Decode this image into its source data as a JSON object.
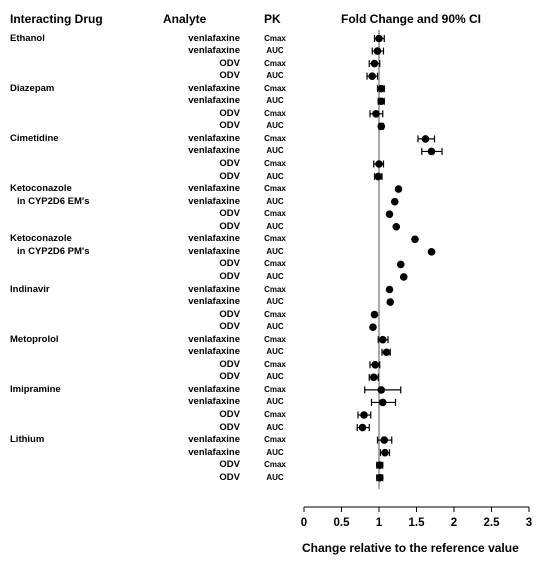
{
  "headers": {
    "drug": "Interacting Drug",
    "analyte": "Analyte",
    "pk": "PK",
    "ci": "Fold Change and 90% CI"
  },
  "chart_data": {
    "type": "scatter",
    "subtype": "forest-plot",
    "xlabel": "Change relative to the reference value",
    "xlim": [
      0,
      3
    ],
    "xticks": [
      "0",
      "0.5",
      "1",
      "1.5",
      "2",
      "2.5",
      "3"
    ],
    "reference_line": 1,
    "rows": [
      {
        "drug_lines": [
          "Ethanol"
        ],
        "analyte": "venlafaxine",
        "pk": "Cmax",
        "est": 1.0,
        "lo": 0.94,
        "hi": 1.07
      },
      {
        "drug_lines": [],
        "analyte": "venlafaxine",
        "pk": "AUC",
        "est": 0.98,
        "lo": 0.91,
        "hi": 1.06
      },
      {
        "drug_lines": [],
        "analyte": "ODV",
        "pk": "Cmax",
        "est": 0.94,
        "lo": 0.87,
        "hi": 1.01
      },
      {
        "drug_lines": [],
        "analyte": "ODV",
        "pk": "AUC",
        "est": 0.91,
        "lo": 0.84,
        "hi": 0.98
      },
      {
        "drug_lines": [
          "Diazepam"
        ],
        "analyte": "venlafaxine",
        "pk": "Cmax",
        "est": 1.03,
        "lo": 0.98,
        "hi": 1.07
      },
      {
        "drug_lines": [],
        "analyte": "venlafaxine",
        "pk": "AUC",
        "est": 1.03,
        "lo": 0.99,
        "hi": 1.07
      },
      {
        "drug_lines": [],
        "analyte": "ODV",
        "pk": "Cmax",
        "est": 0.96,
        "lo": 0.88,
        "hi": 1.05
      },
      {
        "drug_lines": [],
        "analyte": "ODV",
        "pk": "AUC",
        "est": 1.03,
        "lo": 1.0,
        "hi": 1.06
      },
      {
        "drug_lines": [
          "Cimetidine"
        ],
        "analyte": "venlafaxine",
        "pk": "Cmax",
        "est": 1.62,
        "lo": 1.52,
        "hi": 1.74
      },
      {
        "drug_lines": [],
        "analyte": "venlafaxine",
        "pk": "AUC",
        "est": 1.7,
        "lo": 1.57,
        "hi": 1.84
      },
      {
        "drug_lines": [],
        "analyte": "ODV",
        "pk": "Cmax",
        "est": 1.0,
        "lo": 0.93,
        "hi": 1.06
      },
      {
        "drug_lines": [],
        "analyte": "ODV",
        "pk": "AUC",
        "est": 0.99,
        "lo": 0.94,
        "hi": 1.04
      },
      {
        "drug_lines": [
          "Ketoconazole",
          "in CYP2D6 EM's"
        ],
        "analyte": "venlafaxine",
        "pk": "Cmax",
        "est": 1.26,
        "lo": 1.26,
        "hi": 1.26
      },
      {
        "drug_lines": [],
        "analyte": "venlafaxine",
        "pk": "AUC",
        "est": 1.21,
        "lo": 1.21,
        "hi": 1.21
      },
      {
        "drug_lines": [],
        "analyte": "ODV",
        "pk": "Cmax",
        "est": 1.14,
        "lo": 1.14,
        "hi": 1.14
      },
      {
        "drug_lines": [],
        "analyte": "ODV",
        "pk": "AUC",
        "est": 1.23,
        "lo": 1.23,
        "hi": 1.23
      },
      {
        "drug_lines": [
          "Ketoconazole",
          "in CYP2D6 PM's"
        ],
        "analyte": "venlafaxine",
        "pk": "Cmax",
        "est": 1.48,
        "lo": 1.48,
        "hi": 1.48
      },
      {
        "drug_lines": [],
        "analyte": "venlafaxine",
        "pk": "AUC",
        "est": 1.7,
        "lo": 1.7,
        "hi": 1.7
      },
      {
        "drug_lines": [],
        "analyte": "ODV",
        "pk": "Cmax",
        "est": 1.29,
        "lo": 1.29,
        "hi": 1.29
      },
      {
        "drug_lines": [],
        "analyte": "ODV",
        "pk": "AUC",
        "est": 1.33,
        "lo": 1.33,
        "hi": 1.33
      },
      {
        "drug_lines": [
          "Indinavir"
        ],
        "analyte": "venlafaxine",
        "pk": "Cmax",
        "est": 1.14,
        "lo": 1.14,
        "hi": 1.14
      },
      {
        "drug_lines": [],
        "analyte": "venlafaxine",
        "pk": "AUC",
        "est": 1.15,
        "lo": 1.15,
        "hi": 1.15
      },
      {
        "drug_lines": [],
        "analyte": "ODV",
        "pk": "Cmax",
        "est": 0.94,
        "lo": 0.94,
        "hi": 0.94
      },
      {
        "drug_lines": [],
        "analyte": "ODV",
        "pk": "AUC",
        "est": 0.92,
        "lo": 0.92,
        "hi": 0.92
      },
      {
        "drug_lines": [
          "Metoprolol"
        ],
        "analyte": "venlafaxine",
        "pk": "Cmax",
        "est": 1.05,
        "lo": 0.99,
        "hi": 1.12
      },
      {
        "drug_lines": [],
        "analyte": "venlafaxine",
        "pk": "AUC",
        "est": 1.1,
        "lo": 1.04,
        "hi": 1.15
      },
      {
        "drug_lines": [],
        "analyte": "ODV",
        "pk": "Cmax",
        "est": 0.95,
        "lo": 0.88,
        "hi": 1.01
      },
      {
        "drug_lines": [],
        "analyte": "ODV",
        "pk": "AUC",
        "est": 0.93,
        "lo": 0.87,
        "hi": 0.99
      },
      {
        "drug_lines": [
          "Imipramine"
        ],
        "analyte": "venlafaxine",
        "pk": "Cmax",
        "est": 1.03,
        "lo": 0.81,
        "hi": 1.29
      },
      {
        "drug_lines": [],
        "analyte": "venlafaxine",
        "pk": "AUC",
        "est": 1.05,
        "lo": 0.9,
        "hi": 1.22
      },
      {
        "drug_lines": [],
        "analyte": "ODV",
        "pk": "Cmax",
        "est": 0.8,
        "lo": 0.72,
        "hi": 0.89
      },
      {
        "drug_lines": [],
        "analyte": "ODV",
        "pk": "AUC",
        "est": 0.78,
        "lo": 0.71,
        "hi": 0.87
      },
      {
        "drug_lines": [
          "Lithium"
        ],
        "analyte": "venlafaxine",
        "pk": "Cmax",
        "est": 1.07,
        "lo": 0.98,
        "hi": 1.17
      },
      {
        "drug_lines": [],
        "analyte": "venlafaxine",
        "pk": "AUC",
        "est": 1.08,
        "lo": 1.02,
        "hi": 1.14
      },
      {
        "drug_lines": [],
        "analyte": "ODV",
        "pk": "Cmax",
        "est": 1.01,
        "lo": 0.97,
        "hi": 1.05
      },
      {
        "drug_lines": [],
        "analyte": "ODV",
        "pk": "AUC",
        "est": 1.01,
        "lo": 0.97,
        "hi": 1.05
      }
    ]
  }
}
